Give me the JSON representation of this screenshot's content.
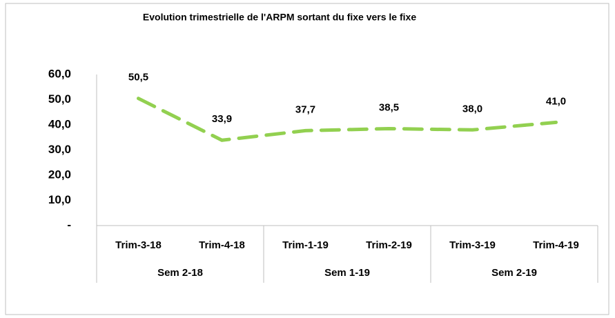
{
  "chart_data": {
    "type": "line",
    "title": "Evolution trimestrielle de l'ARPM sortant du  fixe  vers le fixe",
    "categories": [
      "Trim-3-18",
      "Trim-4-18",
      "Trim-1-19",
      "Trim-2-19",
      "Trim-3-19",
      "Trim-4-19"
    ],
    "groups": [
      "Sem 2-18",
      "Sem 1-19",
      "Sem 2-19"
    ],
    "series": [
      {
        "color": "#92d050",
        "values": [
          50.5,
          33.9,
          37.7,
          38.5,
          38.0,
          41.0
        ],
        "value_labels": [
          "50,5",
          "33,9",
          "37,7",
          "38,5",
          "38,0",
          "41,0"
        ]
      }
    ],
    "ylim": [
      0,
      60
    ],
    "yticks": [
      {
        "value": 0,
        "label": "-"
      },
      {
        "value": 10,
        "label": "10,0"
      },
      {
        "value": 20,
        "label": "20,0"
      },
      {
        "value": 30,
        "label": "30,0"
      },
      {
        "value": 40,
        "label": "40,0"
      },
      {
        "value": 50,
        "label": "50,0"
      },
      {
        "value": 60,
        "label": "60,0"
      }
    ],
    "line_style": "dashed"
  }
}
